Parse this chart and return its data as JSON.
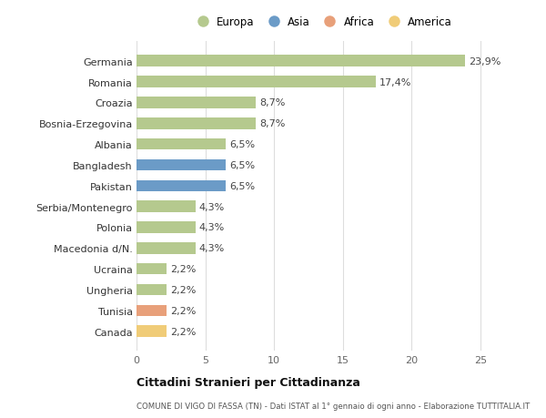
{
  "countries": [
    "Germania",
    "Romania",
    "Croazia",
    "Bosnia-Erzegovina",
    "Albania",
    "Bangladesh",
    "Pakistan",
    "Serbia/Montenegro",
    "Polonia",
    "Macedonia d/N.",
    "Ucraina",
    "Ungheria",
    "Tunisia",
    "Canada"
  ],
  "values": [
    23.9,
    17.4,
    8.7,
    8.7,
    6.5,
    6.5,
    6.5,
    4.3,
    4.3,
    4.3,
    2.2,
    2.2,
    2.2,
    2.2
  ],
  "labels": [
    "23,9%",
    "17,4%",
    "8,7%",
    "8,7%",
    "6,5%",
    "6,5%",
    "6,5%",
    "4,3%",
    "4,3%",
    "4,3%",
    "2,2%",
    "2,2%",
    "2,2%",
    "2,2%"
  ],
  "continents": [
    "Europa",
    "Europa",
    "Europa",
    "Europa",
    "Europa",
    "Asia",
    "Asia",
    "Europa",
    "Europa",
    "Europa",
    "Europa",
    "Europa",
    "Africa",
    "America"
  ],
  "colors": {
    "Europa": "#b5c98e",
    "Asia": "#6b9bc7",
    "Africa": "#e8a07a",
    "America": "#f0cc78"
  },
  "legend_order": [
    "Europa",
    "Asia",
    "Africa",
    "America"
  ],
  "title": "Cittadini Stranieri per Cittadinanza",
  "subtitle": "COMUNE DI VIGO DI FASSA (TN) - Dati ISTAT al 1° gennaio di ogni anno - Elaborazione TUTTITALIA.IT",
  "xlim": [
    0,
    27
  ],
  "xticks": [
    0,
    5,
    10,
    15,
    20,
    25
  ],
  "background_color": "#ffffff",
  "grid_color": "#dddddd",
  "bar_height": 0.55,
  "label_fontsize": 8,
  "ytick_fontsize": 8,
  "xtick_fontsize": 8
}
